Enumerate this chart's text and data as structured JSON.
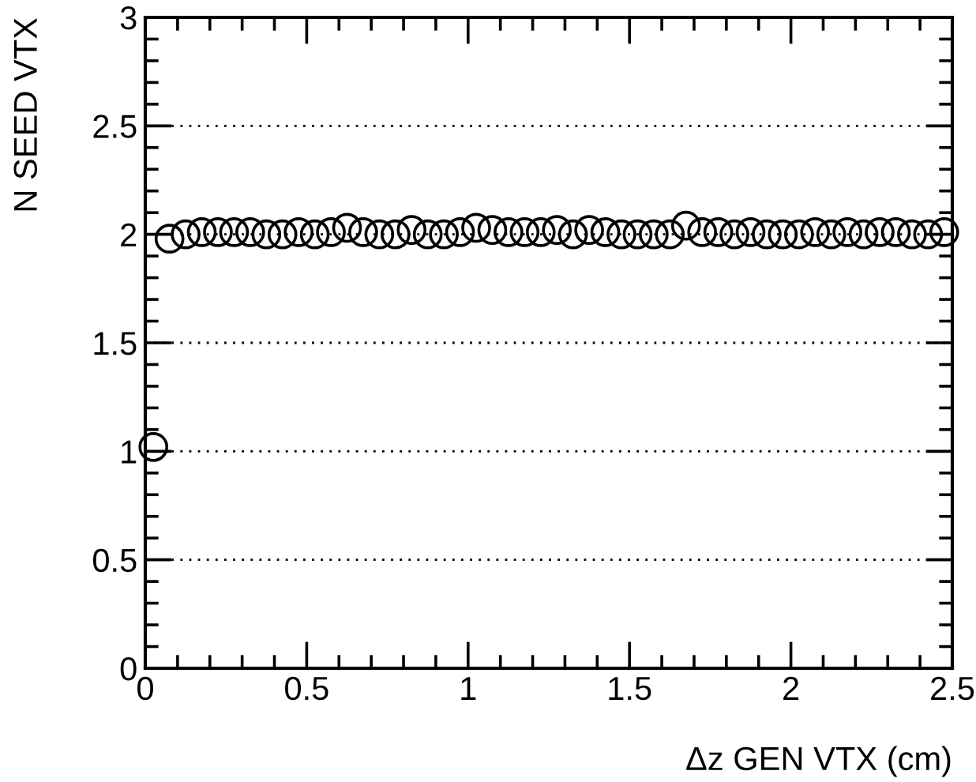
{
  "chart_data": {
    "type": "scatter",
    "xlabel": "Δz GEN VTX (cm)",
    "ylabel": "N SEED VTX",
    "x": [
      0.025,
      0.075,
      0.125,
      0.175,
      0.225,
      0.275,
      0.325,
      0.375,
      0.425,
      0.475,
      0.525,
      0.575,
      0.625,
      0.675,
      0.725,
      0.775,
      0.825,
      0.875,
      0.925,
      0.975,
      1.025,
      1.075,
      1.125,
      1.175,
      1.225,
      1.275,
      1.325,
      1.375,
      1.425,
      1.475,
      1.525,
      1.575,
      1.625,
      1.675,
      1.725,
      1.775,
      1.825,
      1.875,
      1.925,
      1.975,
      2.025,
      2.075,
      2.125,
      2.175,
      2.225,
      2.275,
      2.325,
      2.375,
      2.425,
      2.475
    ],
    "values": [
      1.02,
      1.98,
      2.0,
      2.01,
      2.01,
      2.01,
      2.01,
      2.0,
      2.0,
      2.01,
      2.0,
      2.01,
      2.03,
      2.01,
      2.0,
      2.0,
      2.02,
      2.0,
      2.0,
      2.01,
      2.03,
      2.02,
      2.01,
      2.01,
      2.01,
      2.02,
      2.0,
      2.02,
      2.01,
      2.0,
      2.0,
      2.0,
      2.0,
      2.04,
      2.01,
      2.01,
      2.0,
      2.01,
      2.0,
      2.0,
      2.0,
      2.01,
      2.0,
      2.01,
      2.0,
      2.01,
      2.01,
      2.0,
      2.0,
      2.01
    ],
    "color": "#000000",
    "marker": "circle",
    "xlim": [
      0,
      2.5
    ],
    "xticks": [
      0,
      0.5,
      1,
      1.5,
      2,
      2.5
    ],
    "ylim": [
      0,
      3
    ],
    "yticks": [
      0,
      0.5,
      1,
      1.5,
      2,
      2.5,
      3
    ],
    "grid": "y"
  }
}
